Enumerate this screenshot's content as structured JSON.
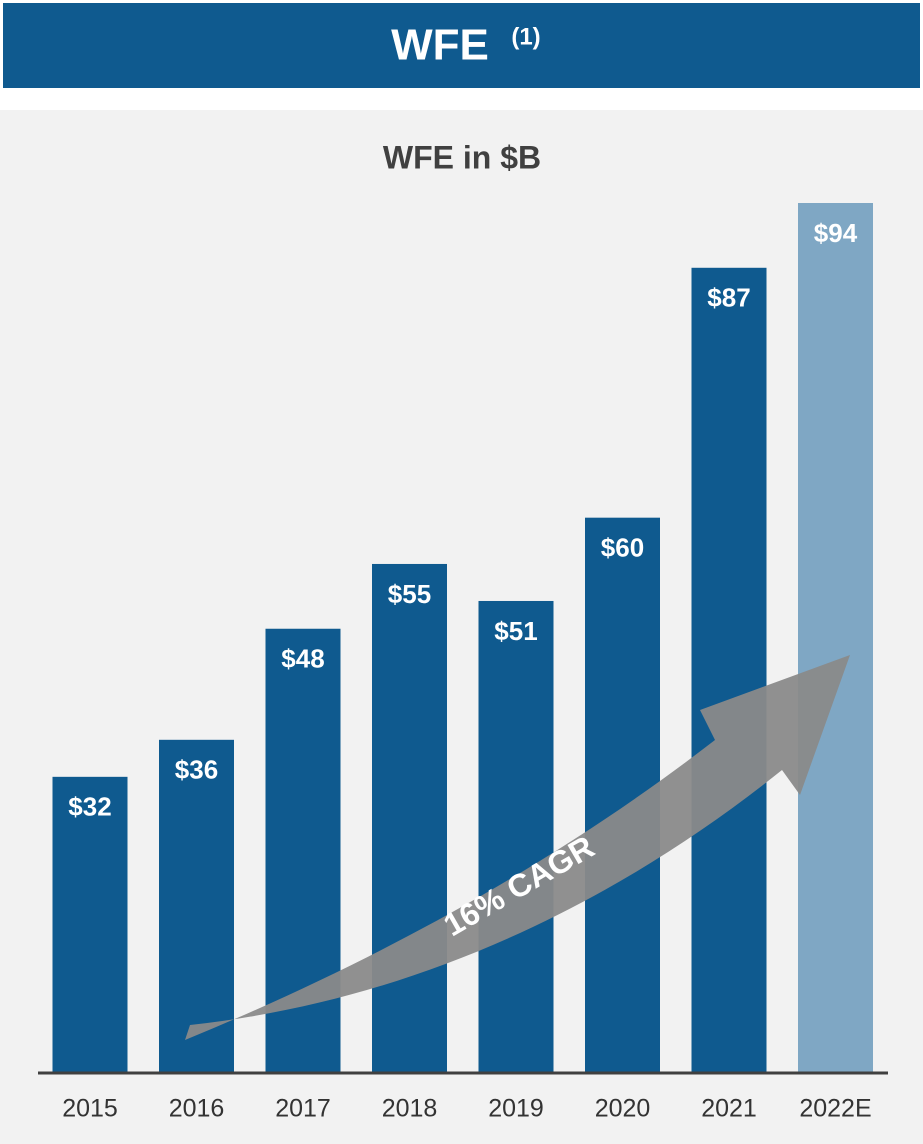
{
  "chart_data": {
    "type": "bar",
    "header": "WFE",
    "header_note": "(1)",
    "title": "WFE in $B",
    "categories": [
      "2015",
      "2016",
      "2017",
      "2018",
      "2019",
      "2020",
      "2021",
      "2022E"
    ],
    "values": [
      32,
      36,
      48,
      55,
      51,
      60,
      87,
      94
    ],
    "value_labels": [
      "$32",
      "$36",
      "$48",
      "$55",
      "$51",
      "$60",
      "$87",
      "$94"
    ],
    "colors": [
      "#0f5a8f",
      "#0f5a8f",
      "#0f5a8f",
      "#0f5a8f",
      "#0f5a8f",
      "#0f5a8f",
      "#0f5a8f",
      "#7fa7c4"
    ],
    "annotation": "16% CAGR"
  }
}
